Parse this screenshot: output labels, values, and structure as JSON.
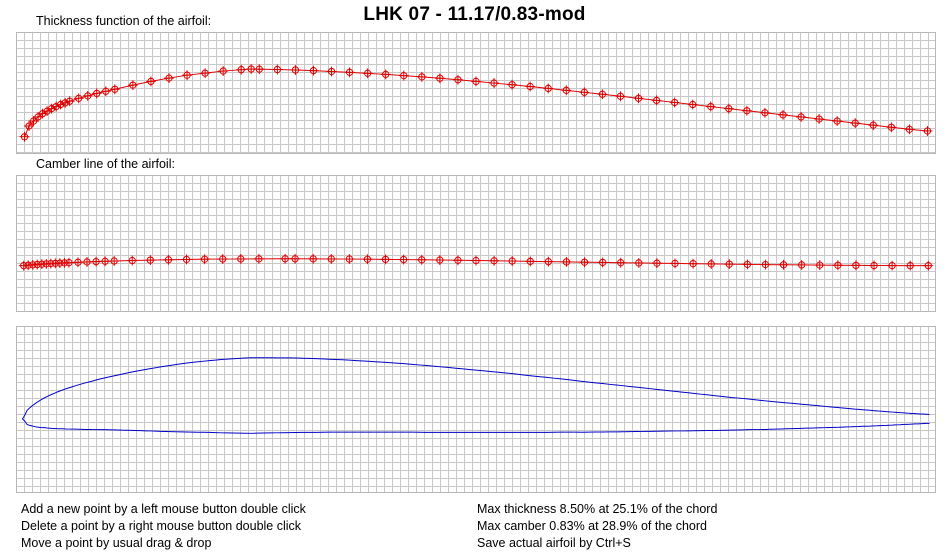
{
  "title": "LHK  07 - 11.17/0.83-mod",
  "thickness": {
    "label": "Thickness function of the airfoil:",
    "points": [
      [
        0,
        0.3
      ],
      [
        0.5,
        1.6
      ],
      [
        1,
        2.2
      ],
      [
        1.5,
        2.7
      ],
      [
        2,
        3.1
      ],
      [
        2.5,
        3.4
      ],
      [
        3,
        3.7
      ],
      [
        3.5,
        3.95
      ],
      [
        4,
        4.2
      ],
      [
        4.5,
        4.4
      ],
      [
        5,
        4.6
      ],
      [
        6,
        4.95
      ],
      [
        7,
        5.25
      ],
      [
        8,
        5.55
      ],
      [
        9,
        5.8
      ],
      [
        10,
        6.05
      ],
      [
        12,
        6.55
      ],
      [
        14,
        7.0
      ],
      [
        16,
        7.4
      ],
      [
        18,
        7.75
      ],
      [
        20,
        8.0
      ],
      [
        22,
        8.25
      ],
      [
        24,
        8.42
      ],
      [
        25.1,
        8.5
      ],
      [
        26,
        8.48
      ],
      [
        28,
        8.44
      ],
      [
        30,
        8.38
      ],
      [
        32,
        8.3
      ],
      [
        34,
        8.2
      ],
      [
        36,
        8.1
      ],
      [
        38,
        7.98
      ],
      [
        40,
        7.85
      ],
      [
        42,
        7.7
      ],
      [
        44,
        7.55
      ],
      [
        46,
        7.38
      ],
      [
        48,
        7.2
      ],
      [
        50,
        7.0
      ],
      [
        52,
        6.8
      ],
      [
        54,
        6.6
      ],
      [
        56,
        6.38
      ],
      [
        58,
        6.15
      ],
      [
        60,
        5.92
      ],
      [
        62,
        5.68
      ],
      [
        64,
        5.44
      ],
      [
        66,
        5.2
      ],
      [
        68,
        4.95
      ],
      [
        70,
        4.7
      ],
      [
        72,
        4.45
      ],
      [
        74,
        4.2
      ],
      [
        76,
        3.95
      ],
      [
        78,
        3.7
      ],
      [
        80,
        3.45
      ],
      [
        82,
        3.2
      ],
      [
        84,
        2.95
      ],
      [
        86,
        2.7
      ],
      [
        88,
        2.45
      ],
      [
        90,
        2.2
      ],
      [
        92,
        1.95
      ],
      [
        94,
        1.7
      ],
      [
        96,
        1.45
      ],
      [
        98,
        1.2
      ],
      [
        100,
        1.0
      ]
    ]
  },
  "camber": {
    "label": "Camber line of the airfoil:",
    "points": [
      [
        0,
        0
      ],
      [
        0.5,
        0.05
      ],
      [
        1,
        0.1
      ],
      [
        1.5,
        0.14
      ],
      [
        2,
        0.18
      ],
      [
        2.5,
        0.22
      ],
      [
        3,
        0.25
      ],
      [
        3.5,
        0.28
      ],
      [
        4,
        0.31
      ],
      [
        4.5,
        0.34
      ],
      [
        5,
        0.36
      ],
      [
        6,
        0.41
      ],
      [
        7,
        0.45
      ],
      [
        8,
        0.49
      ],
      [
        9,
        0.53
      ],
      [
        10,
        0.56
      ],
      [
        12,
        0.62
      ],
      [
        14,
        0.67
      ],
      [
        16,
        0.71
      ],
      [
        18,
        0.75
      ],
      [
        20,
        0.78
      ],
      [
        22,
        0.8
      ],
      [
        24,
        0.815
      ],
      [
        26,
        0.825
      ],
      [
        28.9,
        0.83
      ],
      [
        30,
        0.83
      ],
      [
        32,
        0.825
      ],
      [
        34,
        0.815
      ],
      [
        36,
        0.8
      ],
      [
        38,
        0.78
      ],
      [
        40,
        0.76
      ],
      [
        42,
        0.74
      ],
      [
        44,
        0.71
      ],
      [
        46,
        0.68
      ],
      [
        48,
        0.65
      ],
      [
        50,
        0.62
      ],
      [
        52,
        0.59
      ],
      [
        54,
        0.56
      ],
      [
        56,
        0.52
      ],
      [
        58,
        0.49
      ],
      [
        60,
        0.46
      ],
      [
        62,
        0.42
      ],
      [
        64,
        0.39
      ],
      [
        66,
        0.36
      ],
      [
        68,
        0.33
      ],
      [
        70,
        0.3
      ],
      [
        72,
        0.27
      ],
      [
        74,
        0.24
      ],
      [
        76,
        0.21
      ],
      [
        78,
        0.18
      ],
      [
        80,
        0.16
      ],
      [
        82,
        0.13
      ],
      [
        84,
        0.11
      ],
      [
        86,
        0.09
      ],
      [
        88,
        0.07
      ],
      [
        90,
        0.05
      ],
      [
        92,
        0.035
      ],
      [
        94,
        0.02
      ],
      [
        96,
        0.01
      ],
      [
        98,
        0.005
      ],
      [
        100,
        0
      ]
    ]
  },
  "colors": {
    "marker": "#e00000",
    "outline": "#0000c8",
    "grid": "#c8c8c8"
  },
  "help": {
    "left": [
      "Add a new point by a left mouse button double click",
      "Delete a point by a right mouse button double click",
      "Move a point by usual drag & drop"
    ],
    "right": [
      "Max thickness 8.50% at 25.1% of the chord",
      "Max camber 0.83% at 28.9% of the chord",
      "Save actual airfoil by Ctrl+S"
    ]
  }
}
